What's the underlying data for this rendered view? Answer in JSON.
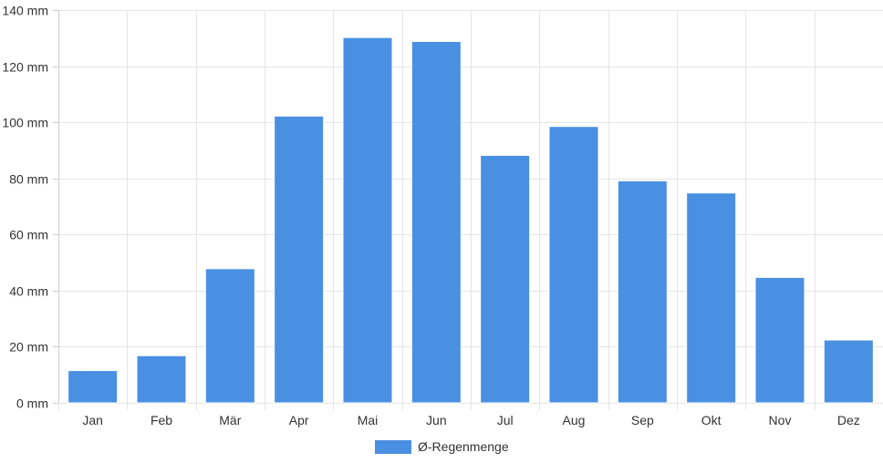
{
  "chart_data": {
    "type": "bar",
    "categories": [
      "Jan",
      "Feb",
      "Mär",
      "Apr",
      "Mai",
      "Jun",
      "Jul",
      "Aug",
      "Sep",
      "Okt",
      "Nov",
      "Dez"
    ],
    "series": [
      {
        "name": "Ø-Regenmenge",
        "color": "#4a90e2",
        "values": [
          11.5,
          16.8,
          47.8,
          102.2,
          130.2,
          128.8,
          88.2,
          98.5,
          79.1,
          74.8,
          44.7,
          22.4
        ]
      }
    ],
    "ylim": [
      0,
      140
    ],
    "yticks": [
      0,
      20,
      40,
      60,
      80,
      100,
      120,
      140
    ],
    "y_unit": "mm",
    "grid": true,
    "legend_position": "bottom"
  }
}
